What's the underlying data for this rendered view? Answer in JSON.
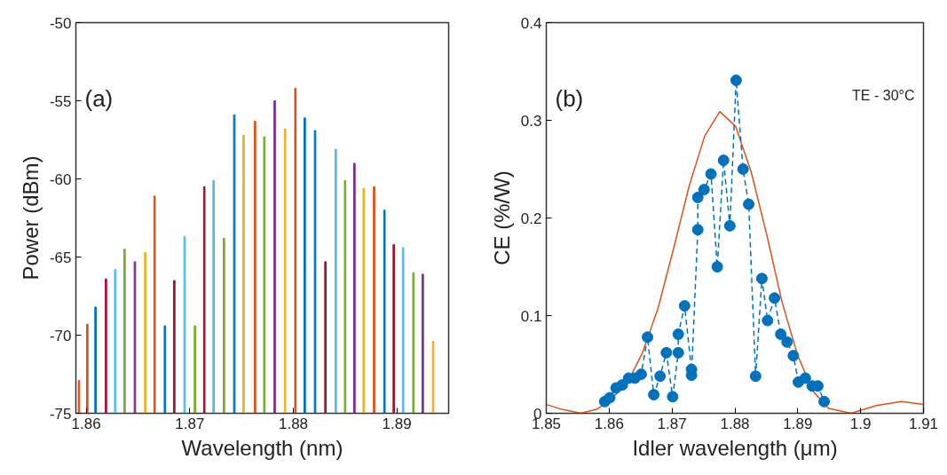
{
  "chart_data": [
    {
      "type": "bar",
      "xlabel": "Wavelength (nm)",
      "ylabel": "Power (dBm)",
      "annotations": [
        "(a)"
      ],
      "xlim": [
        1.859,
        1.895
      ],
      "ylim": [
        -75,
        -50
      ],
      "xticks": [
        1.86,
        1.87,
        1.88,
        1.89
      ],
      "yticks": [
        -75,
        -70,
        -65,
        -60,
        -55,
        -50
      ],
      "grid": false,
      "series": [
        {
          "x": [
            1.8593,
            1.8601,
            1.8609,
            1.8619,
            1.8628,
            1.8637,
            1.8647,
            1.8657,
            1.8666,
            1.8676,
            1.8685,
            1.8695,
            1.8705,
            1.8714,
            1.8723,
            1.8733,
            1.8743,
            1.8752,
            1.8763,
            1.8772,
            1.8782,
            1.8792,
            1.8802,
            1.8811,
            1.8821,
            1.8831,
            1.8841,
            1.885,
            1.8859,
            1.8868,
            1.8878,
            1.8888,
            1.8897,
            1.8906,
            1.8916,
            1.8925,
            1.8935
          ],
          "base": [
            -75,
            -75,
            -75,
            -75,
            -75,
            -75,
            -75,
            -75,
            -75,
            -75,
            -75,
            -75,
            -75,
            -75,
            -75,
            -75,
            -75,
            -75,
            -75,
            -75,
            -75,
            -75,
            -75,
            -75,
            -75,
            -75,
            -75,
            -75,
            -75,
            -75,
            -75,
            -75,
            -75,
            -75,
            -75,
            -75,
            -75
          ],
          "values": [
            2.1,
            5.7,
            6.8,
            8.6,
            9.2,
            10.5,
            9.7,
            10.3,
            13.9,
            5.6,
            8.5,
            11.3,
            5.6,
            14.5,
            14.9,
            11.2,
            19.1,
            17.8,
            18.7,
            17.7,
            20.0,
            18.2,
            20.8,
            18.9,
            18.1,
            9.7,
            16.9,
            14.9,
            16.0,
            14.4,
            14.5,
            13.0,
            10.8,
            10.6,
            9.0,
            8.9,
            4.6
          ],
          "colors": [
            "#d95319",
            "#d95319",
            "#0072bd",
            "#a2142f",
            "#4dbeee",
            "#77ac30",
            "#7e2f8e",
            "#edb120",
            "#d95319",
            "#0072bd",
            "#a2142f",
            "#4dbeee",
            "#77ac30",
            "#a2142f",
            "#4dbeee",
            "#77ac30",
            "#0072bd",
            "#edb120",
            "#d95319",
            "#77ac30",
            "#7e2f8e",
            "#edb120",
            "#d95319",
            "#0072bd",
            "#0072bd",
            "#a2142f",
            "#4dbeee",
            "#77ac30",
            "#7e2f8e",
            "#edb120",
            "#d95319",
            "#0072bd",
            "#a2142f",
            "#4dbeee",
            "#77ac30",
            "#7e2f8e",
            "#edb120"
          ]
        }
      ]
    },
    {
      "type": "line",
      "xlabel": "Idler wavelength (μm)",
      "ylabel": "CE (%/W)",
      "annotations": [
        "(b)",
        "TE - 30°C"
      ],
      "xlim": [
        1.85,
        1.91
      ],
      "ylim": [
        0,
        0.4
      ],
      "xticks": [
        1.85,
        1.86,
        1.87,
        1.88,
        1.89,
        1.9,
        1.91
      ],
      "yticks": [
        0,
        0.1,
        0.2,
        0.3,
        0.4
      ],
      "grid": false,
      "series": [
        {
          "type": "line",
          "color": "#d95319",
          "marker": "none",
          "line_style": "solid",
          "x": [
            1.85,
            1.8525,
            1.8555,
            1.858,
            1.8599,
            1.8629,
            1.8653,
            1.8678,
            1.8703,
            1.8727,
            1.8752,
            1.8776,
            1.8801,
            1.8826,
            1.8851,
            1.8875,
            1.89,
            1.8925,
            1.8949,
            1.8985,
            1.9025,
            1.9065,
            1.91
          ],
          "values": [
            0.009,
            0.004,
            0,
            0.004,
            0.012,
            0.031,
            0.062,
            0.108,
            0.17,
            0.232,
            0.284,
            0.309,
            0.294,
            0.247,
            0.182,
            0.114,
            0.059,
            0.022,
            0.005,
            0,
            0.008,
            0.012,
            0.009
          ]
        },
        {
          "type": "line",
          "color": "#0072bd",
          "marker": "circle",
          "line_style": "dashed",
          "x": [
            1.8593,
            1.8601,
            1.8611,
            1.8621,
            1.8631,
            1.8641,
            1.8651,
            1.8661,
            1.8671,
            1.8681,
            1.8691,
            1.8701,
            1.871,
            1.871,
            1.872,
            1.8731,
            1.8731,
            1.8741,
            1.8741,
            1.8751,
            1.8762,
            1.8772,
            1.8782,
            1.8792,
            1.8802,
            1.8813,
            1.8822,
            1.8833,
            1.8843,
            1.8852,
            1.8863,
            1.8873,
            1.8883,
            1.8893,
            1.8901,
            1.8912,
            1.8923,
            1.8932,
            1.8942
          ],
          "values": [
            0.012,
            0.016,
            0.026,
            0.029,
            0.036,
            0.036,
            0.04,
            0.078,
            0.019,
            0.038,
            0.062,
            0.017,
            0.062,
            0.081,
            0.11,
            0.045,
            0.039,
            0.188,
            0.221,
            0.229,
            0.245,
            0.15,
            0.259,
            0.192,
            0.341,
            0.25,
            0.214,
            0.038,
            0.138,
            0.095,
            0.118,
            0.081,
            0.073,
            0.059,
            0.032,
            0.036,
            0.028,
            0.028,
            0.012
          ]
        }
      ]
    }
  ]
}
